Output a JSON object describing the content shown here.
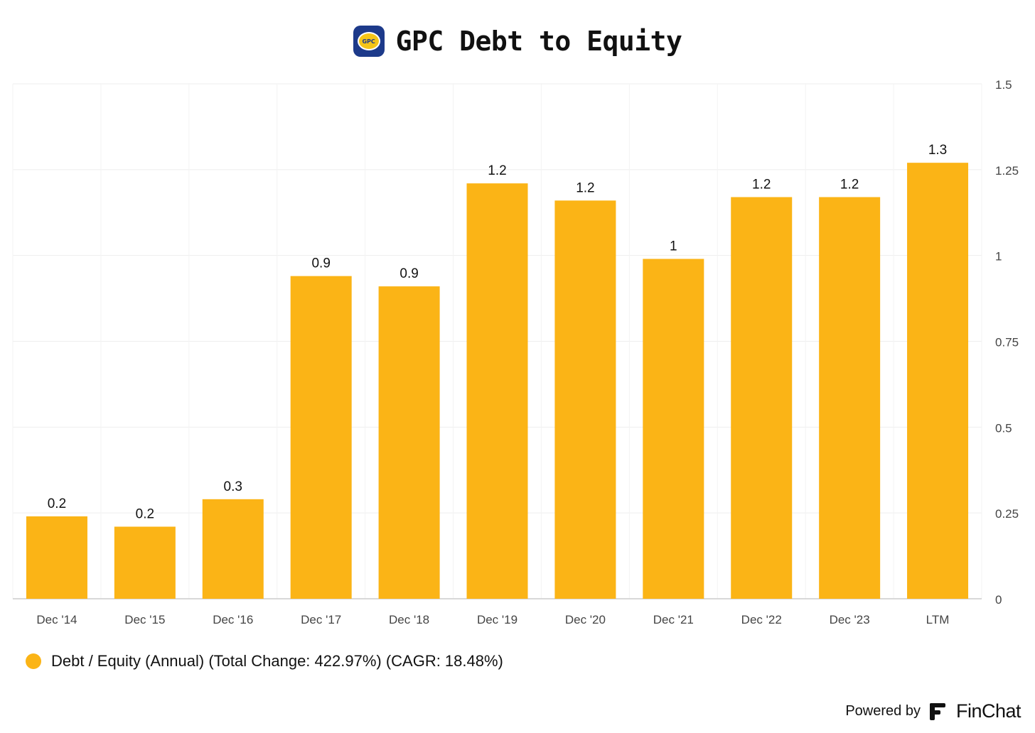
{
  "header": {
    "title": "GPC Debt to Equity",
    "logo_text": "GPC"
  },
  "chart_data": {
    "type": "bar",
    "title": "GPC Debt to Equity",
    "categories": [
      "Dec '14",
      "Dec '15",
      "Dec '16",
      "Dec '17",
      "Dec '18",
      "Dec '19",
      "Dec '20",
      "Dec '21",
      "Dec '22",
      "Dec '23",
      "LTM"
    ],
    "series": [
      {
        "name": "Debt / Equity (Annual) (Total Change: 422.97%) (CAGR: 18.48%)",
        "values": [
          0.24,
          0.21,
          0.29,
          0.94,
          0.91,
          1.21,
          1.16,
          0.99,
          1.17,
          1.17,
          1.27
        ],
        "labels": [
          "0.2",
          "0.2",
          "0.3",
          "0.9",
          "0.9",
          "1.2",
          "1.2",
          "1",
          "1.2",
          "1.2",
          "1.3"
        ],
        "color": "#fbb416"
      }
    ],
    "ylim": [
      0,
      1.5
    ],
    "yticks": [
      0,
      0.25,
      0.5,
      0.75,
      1,
      1.25,
      1.5
    ],
    "ytick_labels": [
      "0",
      "0.25",
      "0.5",
      "0.75",
      "1",
      "1.25",
      "1.5"
    ],
    "y_axis_side": "right",
    "grid": true,
    "legend_position": "bottom-left",
    "xlabel": "",
    "ylabel": ""
  },
  "legend": {
    "label": "Debt / Equity (Annual) (Total Change: 422.97%) (CAGR: 18.48%)",
    "color": "#fbb416"
  },
  "footer": {
    "powered_by": "Powered by",
    "brand": "FinChat"
  },
  "colors": {
    "bar": "#fbb416",
    "grid": "#eeeeee",
    "axis": "#cccccc",
    "logo_bg": "#1d3a8a",
    "logo_fg": "#f5c518"
  }
}
